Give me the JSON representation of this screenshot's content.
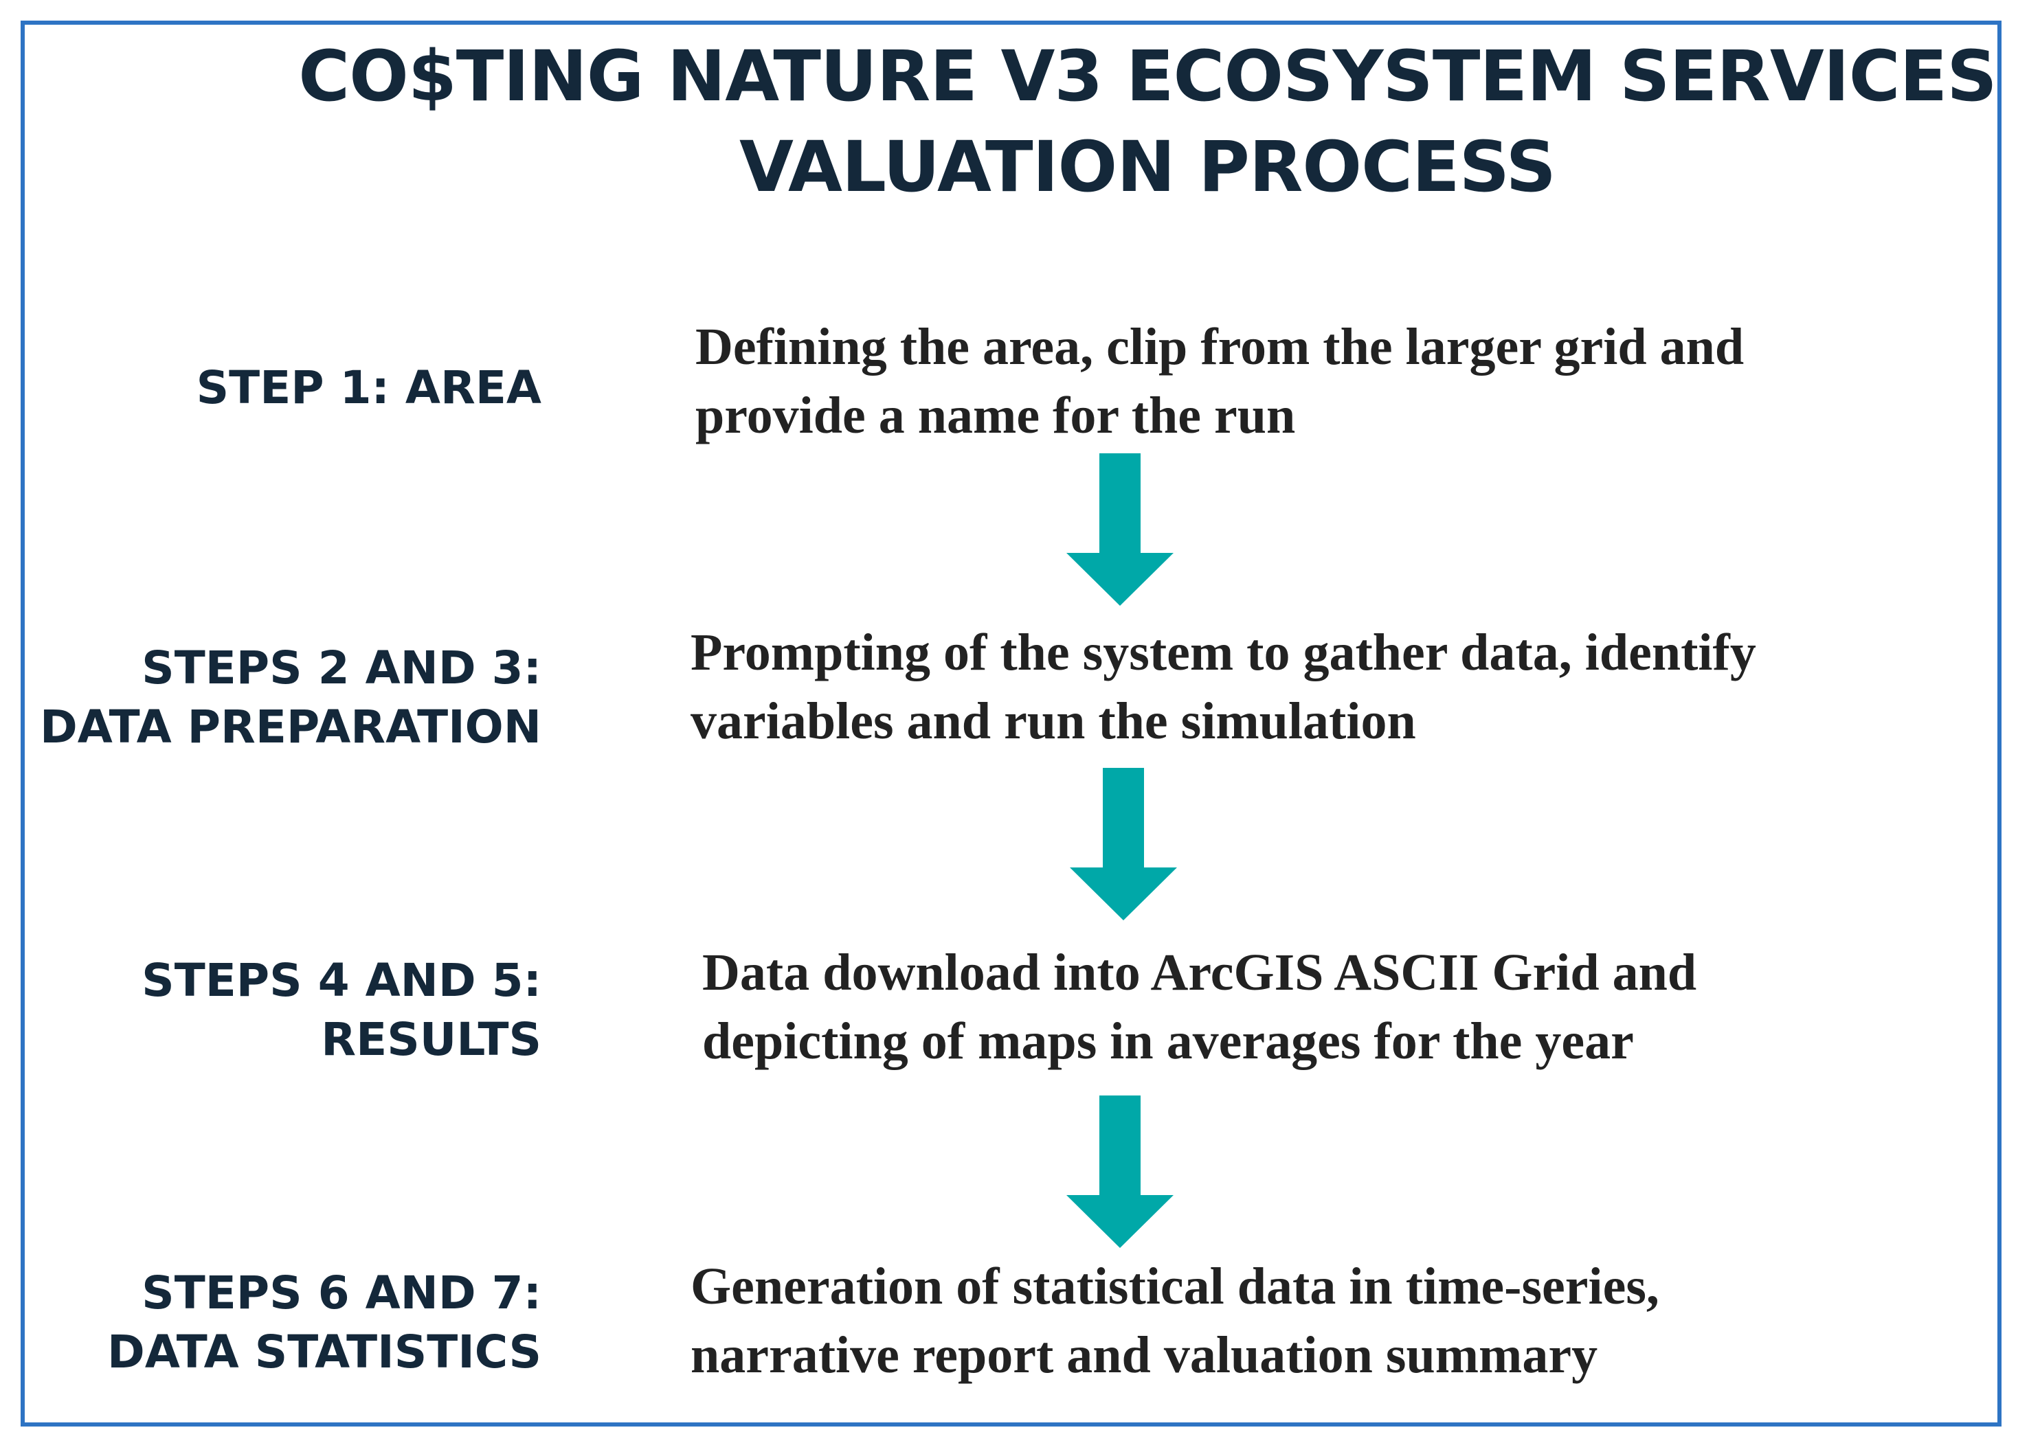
{
  "diagram": {
    "title_lines": [
      "CO$TING NATURE V3 ECOSYSTEM SERVICES",
      "VALUATION PROCESS"
    ],
    "steps": [
      {
        "label_lines": [
          "STEP 1: AREA"
        ],
        "description_lines": [
          "Defining the area, clip from the larger grid and",
          "provide a name for the run"
        ]
      },
      {
        "label_lines": [
          "STEPS 2 AND 3:",
          "DATA PREPARATION"
        ],
        "description_lines": [
          "Prompting of the system to gather data, identify",
          "variables and run the simulation"
        ]
      },
      {
        "label_lines": [
          "STEPS 4 AND 5:",
          "RESULTS"
        ],
        "description_lines": [
          "Data download into ArcGIS ASCII Grid and",
          "depicting of maps in averages for the year"
        ]
      },
      {
        "label_lines": [
          "STEPS 6 AND 7:",
          "DATA STATISTICS"
        ],
        "description_lines": [
          "Generation of statistical data in time-series,",
          "narrative report and valuation summary"
        ]
      }
    ],
    "arrows": [
      {
        "from_step": 1,
        "to_step": 2
      },
      {
        "from_step": 2,
        "to_step": 3
      },
      {
        "from_step": 3,
        "to_step": 4
      }
    ],
    "colors": {
      "border": "#2e74c4",
      "arrow": "#00a8a8",
      "title_text": "#14283a",
      "label_text": "#14283a",
      "description_text": "#222222"
    }
  }
}
